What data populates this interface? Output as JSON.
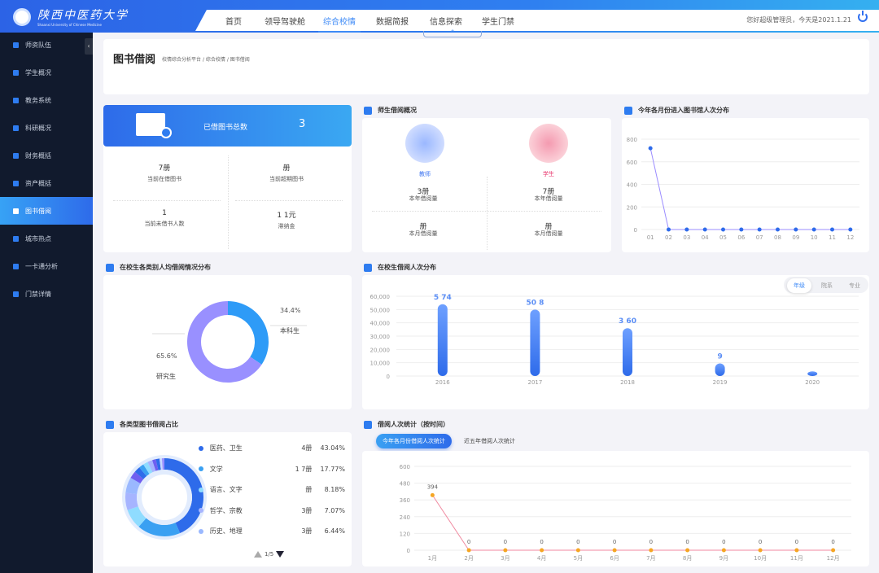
{
  "header": {
    "university_name": "陕西中医药大学",
    "university_en": "Shaanxi University of Chinese Medicine",
    "nav": [
      "首页",
      "领导驾驶舱",
      "综合校情",
      "数据简报",
      "信息探索",
      "学生门禁"
    ],
    "active_nav": "综合校情",
    "greeting": "您好超级管理员，今天是2021.1.21",
    "collapse_icon": "^"
  },
  "sidebar": {
    "items": [
      "师资队伍",
      "学生概况",
      "教务系统",
      "科研概况",
      "财务概括",
      "资产概括",
      "图书借阅",
      "城市热点",
      "一卡通分析",
      "门禁详情"
    ],
    "active": "图书借阅",
    "toggle": "‹"
  },
  "page": {
    "title": "图书借阅",
    "breadcrumb": [
      "校情综合分析平台",
      "综合校情",
      "图书借阅"
    ],
    "sep": "/"
  },
  "summary": {
    "banner_label": "已借图书总数",
    "banner_value": "3",
    "stats": [
      {
        "value": "7册",
        "label": "当前在借图书"
      },
      {
        "value": "册",
        "label": "当前超期图书"
      },
      {
        "value": "1",
        "label": "当前未借书人数"
      },
      {
        "value": "1     1元",
        "label": "滞纳金"
      }
    ]
  },
  "teacher_student": {
    "title": "师生借阅概况",
    "teacher": {
      "name": "教师",
      "year_value": "3册",
      "year_label": "本年借阅量",
      "month_value": "册",
      "month_label": "本月借阅量"
    },
    "student": {
      "name": "学生",
      "year_value": "7册",
      "year_label": "本年借阅量",
      "month_value": "册",
      "month_label": "本月借阅量"
    },
    "colors": {
      "teacher": "#3b73f0",
      "student": "#e8336b"
    }
  },
  "chart_data": [
    {
      "type": "line",
      "title": "今年各月份进入图书馆人次分布",
      "categories": [
        "01",
        "02",
        "03",
        "04",
        "05",
        "06",
        "07",
        "08",
        "09",
        "10",
        "11",
        "12"
      ],
      "values": [
        720,
        0,
        0,
        0,
        0,
        0,
        0,
        0,
        0,
        0,
        0,
        0
      ],
      "ylim": [
        0,
        800
      ],
      "yticks": [
        0,
        200,
        400,
        600,
        800
      ],
      "color": "#9b8cff",
      "point_color": "#2e6bea",
      "grid": true
    },
    {
      "type": "pie",
      "title": "在校生各类别人均借阅情况分布",
      "slices": [
        {
          "name": "本科生",
          "value": 34.4,
          "label": "34.4%",
          "color": "#2e9bf7"
        },
        {
          "name": "研究生",
          "value": 65.6,
          "label": "65.6%",
          "color": "#9990ff"
        }
      ]
    },
    {
      "type": "bar",
      "title": "在校生借阅人次分布",
      "tabs": [
        "年级",
        "院系",
        "专业"
      ],
      "active_tab": "年级",
      "categories": [
        "2016",
        "2017",
        "2018",
        "2019",
        "2020"
      ],
      "values": [
        54000,
        50000,
        36000,
        9500,
        3500
      ],
      "data_labels": [
        "5  74",
        "50   8",
        "3   60",
        "9",
        ""
      ],
      "ylim": [
        0,
        60000
      ],
      "yticks": [
        "0",
        "10,000",
        "20,000",
        "30,000",
        "40,000",
        "50,000",
        "60,000"
      ],
      "color": "#2e6bea",
      "grid": true
    },
    {
      "type": "pie",
      "title": "各类型图书借阅占比",
      "legend": [
        {
          "name": "医药、卫生",
          "count": "4册",
          "pct": "43.04%",
          "color": "#2e6bea"
        },
        {
          "name": "文学",
          "count": "1    7册",
          "pct": "17.77%",
          "color": "#3aa0f2"
        },
        {
          "name": "语言、文字",
          "count": "册",
          "pct": "8.18%",
          "color": "#8fdcff"
        },
        {
          "name": "哲学、宗教",
          "count": "3册",
          "pct": "7.07%",
          "color": "#a6b4ff"
        },
        {
          "name": "历史、地理",
          "count": "3册",
          "pct": "6.44%",
          "color": "#9ab8ff"
        }
      ],
      "values": [
        43.04,
        17.77,
        8.18,
        7.07,
        6.44,
        3,
        2.5,
        2,
        2,
        2,
        1.5,
        1.5,
        1,
        1
      ],
      "extra_colors": [
        "#6f5ff0",
        "#2e6bea",
        "#3aa0f2",
        "#8fdcff",
        "#a6b4ff",
        "#6f5ff0",
        "#2e6bea",
        "#c9d8ff",
        "#9990ff"
      ],
      "pager": "1/5"
    },
    {
      "type": "line",
      "title": "借阅人次统计（按时间）",
      "tabs": [
        "今年各月份借阅人次统计",
        "近五年借阅人次统计"
      ],
      "active_tab": "今年各月份借阅人次统计",
      "categories": [
        "1月",
        "2月",
        "3月",
        "4月",
        "5月",
        "6月",
        "7月",
        "8月",
        "9月",
        "10月",
        "11月",
        "12月"
      ],
      "values": [
        394,
        0,
        0,
        0,
        0,
        0,
        0,
        0,
        0,
        0,
        0,
        0
      ],
      "ylim": [
        0,
        600
      ],
      "yticks": [
        0,
        120,
        240,
        360,
        480,
        600
      ],
      "color": "#f08aa0",
      "point_color": "#f5a623",
      "grid": true
    }
  ]
}
